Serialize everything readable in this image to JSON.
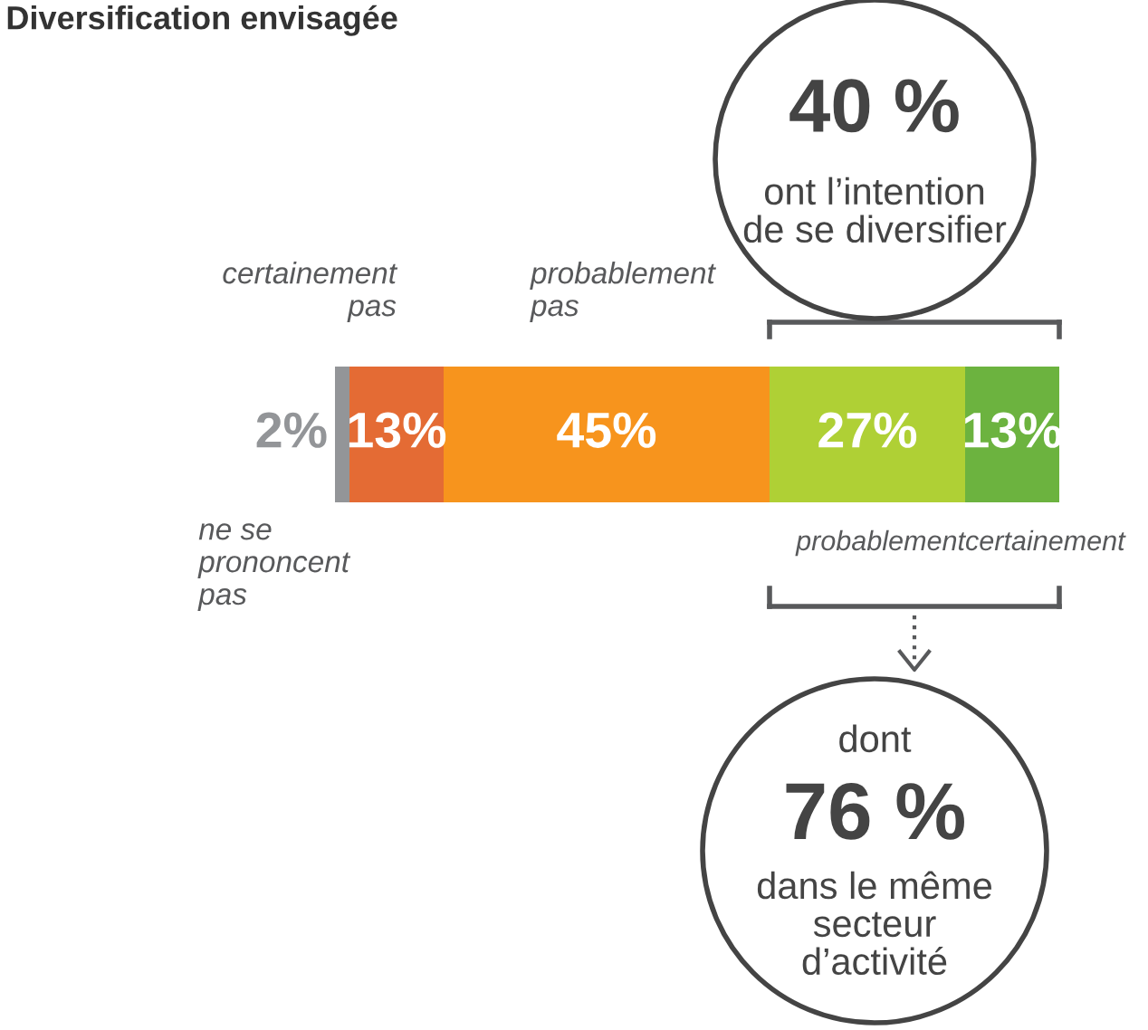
{
  "chart_data": {
    "type": "bar",
    "orientation": "horizontal",
    "stacked": true,
    "title": "Diversification envisagée",
    "categories": [
      null
    ],
    "series": [
      {
        "name": "ne se\nprononcent\npas",
        "color": "#939598",
        "values": [
          2
        ],
        "value_labels": [
          "2%"
        ]
      },
      {
        "name": "certainement\npas",
        "color": "#e46b34",
        "values": [
          13
        ],
        "value_labels": [
          "13%"
        ]
      },
      {
        "name": "probablement\npas",
        "color": "#f7941d",
        "values": [
          45
        ],
        "value_labels": [
          "45%"
        ]
      },
      {
        "name": "probablement",
        "color": "#afd035",
        "values": [
          27
        ],
        "value_labels": [
          "27%"
        ]
      },
      {
        "name": "certainement",
        "color": "#6cb33f",
        "values": [
          13
        ],
        "value_labels": [
          "13%"
        ]
      }
    ],
    "annotations": [
      "40 %",
      "ont l’intention\nde se diversifier",
      "dont",
      "76 %",
      "dans le même\nsecteur\nd’activité"
    ]
  }
}
